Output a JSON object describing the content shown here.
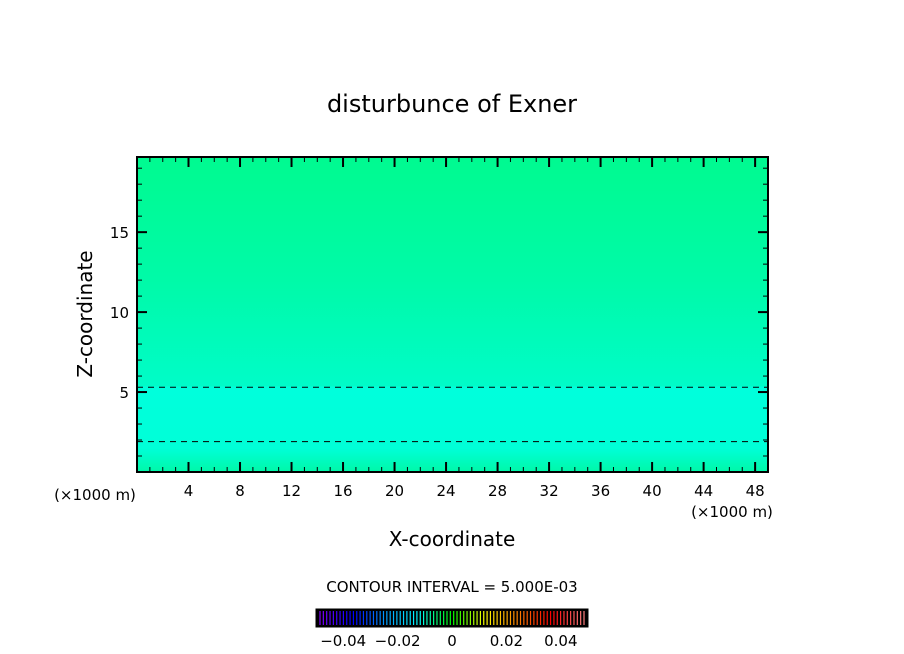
{
  "chart_data": {
    "type": "heatmap",
    "title": "disturbunce of Exner",
    "xlabel": "X-coordinate",
    "ylabel": "Z-coordinate",
    "x_unit_left": "(×1000 m)",
    "x_unit_right": "(×1000 m)",
    "xlim": [
      0,
      49
    ],
    "ylim": [
      0,
      19.7
    ],
    "x_ticks": [
      4,
      8,
      12,
      16,
      20,
      24,
      28,
      32,
      36,
      40,
      44,
      48
    ],
    "y_ticks": [
      5,
      10,
      15
    ],
    "fill_gradient": [
      {
        "z": 0,
        "color": "#00f8a8"
      },
      {
        "z": 1.5,
        "color": "#00ffd8"
      },
      {
        "z": 5.3,
        "color": "#00ffdc"
      },
      {
        "z": 5.4,
        "color": "#00fcc8"
      },
      {
        "z": 12,
        "color": "#00faa8"
      },
      {
        "z": 19.7,
        "color": "#00fa90"
      }
    ],
    "contour_lines": [
      {
        "z": 5.3,
        "style": "dashed"
      },
      {
        "z": 1.9,
        "style": "dashed"
      }
    ],
    "contour_interval_label": "CONTOUR INTERVAL = 5.000E-03",
    "colorbar": {
      "range": [
        -0.05,
        0.05
      ],
      "tick_values": [
        -0.04,
        -0.02,
        0,
        0.02,
        0.04
      ],
      "tick_labels": [
        "-0.04",
        "-0.02",
        "0",
        "0.02",
        "0.04"
      ],
      "colors": [
        "#8000ff",
        "#0000ff",
        "#00a0ff",
        "#00ffff",
        "#00ff00",
        "#ffff00",
        "#ff8000",
        "#ff0000",
        "#ff8080"
      ]
    }
  }
}
